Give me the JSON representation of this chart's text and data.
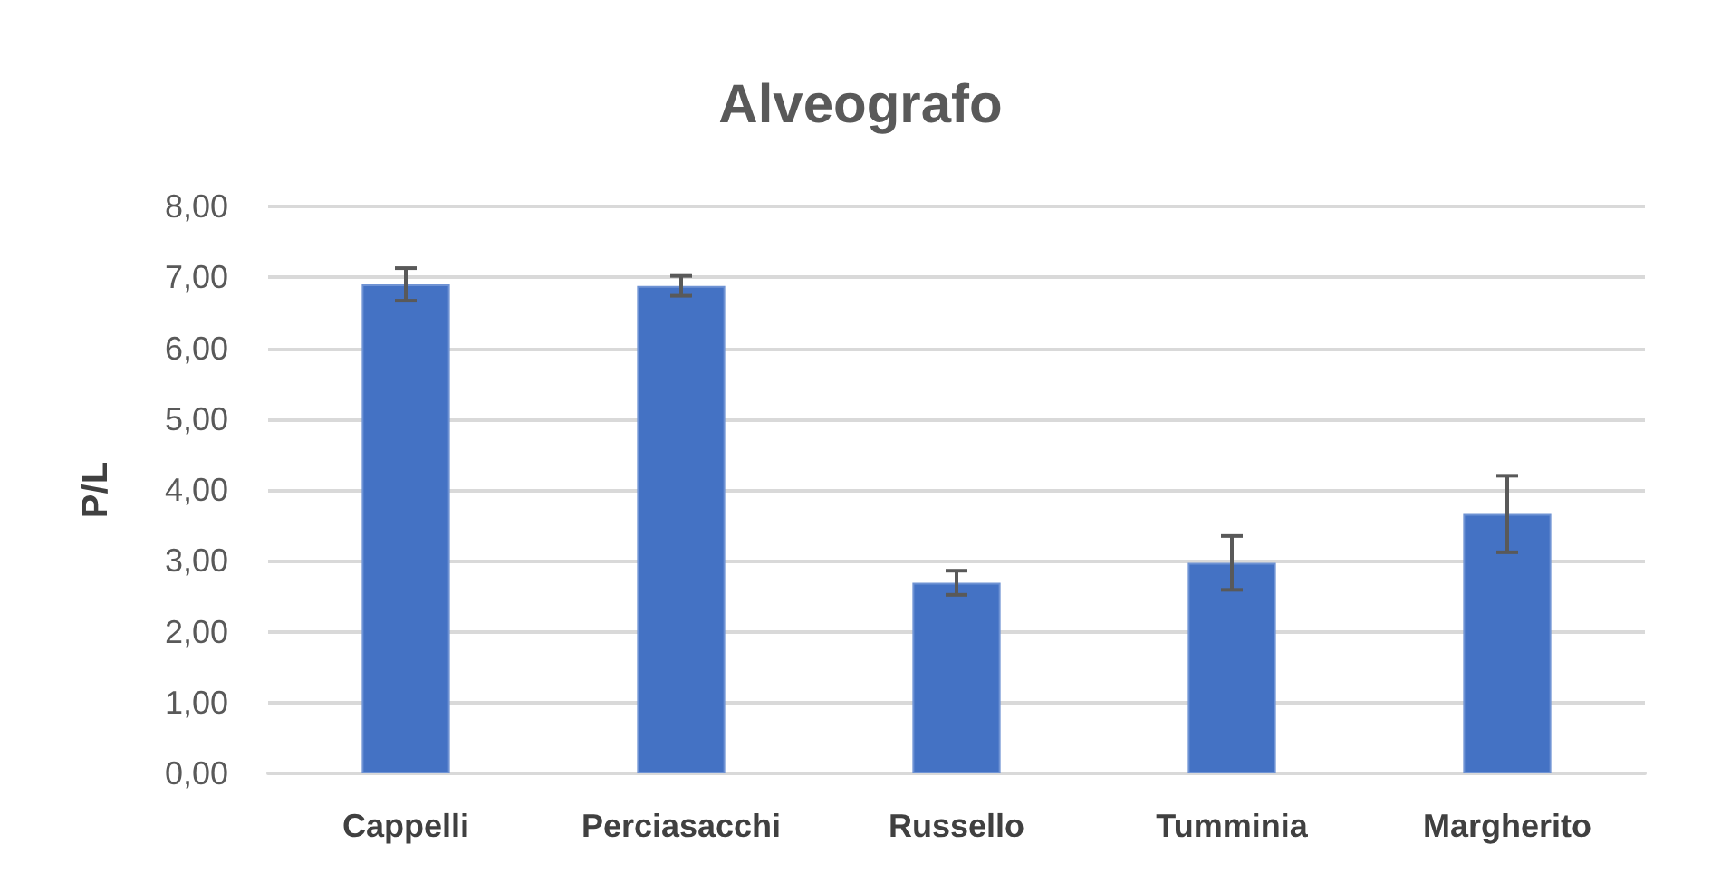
{
  "chart_data": {
    "type": "bar",
    "title": "Alveografo",
    "ylabel": "P/L",
    "categories": [
      "Cappelli",
      "Perciasacchi",
      "Russello",
      "Tumminia",
      "Margherito"
    ],
    "values": [
      6.9,
      6.88,
      2.69,
      2.97,
      3.66
    ],
    "errors": [
      0.23,
      0.14,
      0.17,
      0.38,
      0.54
    ],
    "color": "#4472c4",
    "ylim": [
      0,
      8
    ],
    "yticks": [
      {
        "value": 0,
        "label": "0,00"
      },
      {
        "value": 1,
        "label": "1,00"
      },
      {
        "value": 2,
        "label": "2,00"
      },
      {
        "value": 3,
        "label": "3,00"
      },
      {
        "value": 4,
        "label": "4,00"
      },
      {
        "value": 5,
        "label": "5,00"
      },
      {
        "value": 6,
        "label": "6,00"
      },
      {
        "value": 7,
        "label": "7,00"
      },
      {
        "value": 8,
        "label": "8,00"
      }
    ],
    "grid": "y"
  }
}
